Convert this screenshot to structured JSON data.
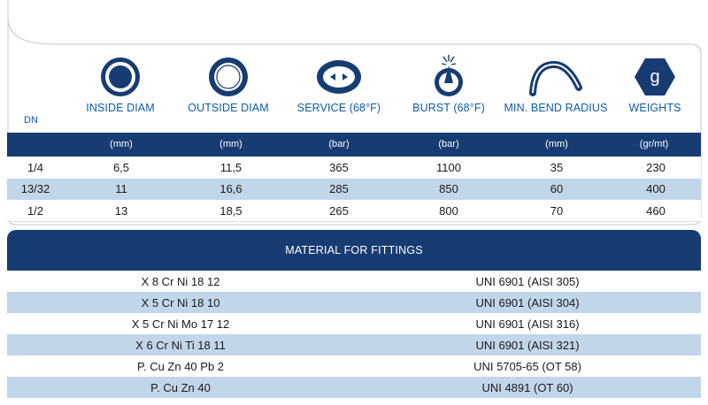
{
  "header": {
    "dn_label": "DN",
    "columns": [
      {
        "label": "INSIDE DIAM",
        "unit": "(mm)",
        "icon": "inside-diam-icon"
      },
      {
        "label": "OUTSIDE DIAM",
        "unit": "(mm)",
        "icon": "outside-diam-icon"
      },
      {
        "label": "SERVICE (68°F)",
        "unit": "(bar)",
        "icon": "service-pressure-icon"
      },
      {
        "label": "BURST (68°F)",
        "unit": "(bar)",
        "icon": "burst-icon"
      },
      {
        "label": "MIN. BEND RADIUS",
        "unit": "(mm)",
        "icon": "bend-radius-icon"
      },
      {
        "label": "WEIGHTS",
        "unit": "(gr/mt)",
        "icon": "weight-icon",
        "glyph": "g"
      }
    ]
  },
  "spec_rows": [
    {
      "dn": "1/4",
      "inside": "6,5",
      "outside": "11,5",
      "service": "365",
      "burst": "1100",
      "bend": "35",
      "weight": "230"
    },
    {
      "dn": "13/32",
      "inside": "11",
      "outside": "16,6",
      "service": "285",
      "burst": "850",
      "bend": "60",
      "weight": "400"
    },
    {
      "dn": "1/2",
      "inside": "13",
      "outside": "18,5",
      "service": "265",
      "burst": "800",
      "bend": "70",
      "weight": "460"
    }
  ],
  "fittings": {
    "title": "MATERIAL FOR FITTINGS",
    "rows": [
      {
        "material": "X 8 Cr Ni 18 12",
        "standard": "UNI 6901 (AISI 305)"
      },
      {
        "material": "X 5 Cr Ni 18 10",
        "standard": "UNI 6901 (AISI 304)"
      },
      {
        "material": "X 5 Cr Ni Mo 17 12",
        "standard": "UNI 6901 (AISI 316)"
      },
      {
        "material": "X 6 Cr Ni  Ti 18 11",
        "standard": "UNI 6901 (AISI 321)"
      },
      {
        "material": "P. Cu Zn 40 Pb 2",
        "standard": "UNI 5705-65 (OT 58)"
      },
      {
        "material": "P. Cu Zn 40",
        "standard": "UNI 4891 (OT 60)"
      }
    ]
  },
  "colors": {
    "navy": "#173c72",
    "icon_blue": "#0e5aa7",
    "row_alt": "#c2d6ea"
  }
}
